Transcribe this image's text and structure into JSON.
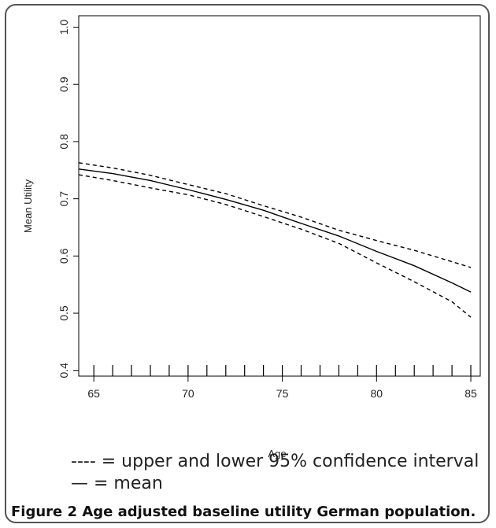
{
  "chart_data": {
    "type": "line",
    "title": "",
    "xlabel": "Age",
    "ylabel": "Mean Utility",
    "xlim": [
      64.2,
      85.5
    ],
    "ylim": [
      0.39,
      1.02
    ],
    "x_ticks": [
      "65",
      "70",
      "75",
      "80",
      "85"
    ],
    "y_ticks": [
      "0.4",
      "0.5",
      "0.6",
      "0.7",
      "0.8",
      "0.9",
      "1.0"
    ],
    "rug_x": [
      65,
      66,
      67,
      68,
      69,
      70,
      71,
      72,
      73,
      74,
      75,
      76,
      77,
      78,
      79,
      80,
      81,
      82,
      83,
      84,
      85
    ],
    "series": [
      {
        "style": "solid",
        "x": [
          64.2,
          66,
          68,
          70,
          72,
          74,
          76,
          78,
          80,
          82,
          84,
          85
        ],
        "y": [
          0.752,
          0.744,
          0.732,
          0.716,
          0.699,
          0.68,
          0.657,
          0.635,
          0.608,
          0.583,
          0.553,
          0.537
        ]
      },
      {
        "style": "dashed",
        "x": [
          64.2,
          66,
          68,
          70,
          72,
          74,
          76,
          78,
          80,
          82,
          84,
          85
        ],
        "y": [
          0.763,
          0.754,
          0.741,
          0.725,
          0.709,
          0.688,
          0.668,
          0.645,
          0.627,
          0.61,
          0.59,
          0.58
        ]
      },
      {
        "style": "dashed",
        "x": [
          64.2,
          66,
          68,
          70,
          72,
          74,
          76,
          78,
          80,
          82,
          84,
          85
        ],
        "y": [
          0.742,
          0.732,
          0.719,
          0.707,
          0.69,
          0.669,
          0.647,
          0.622,
          0.588,
          0.555,
          0.52,
          0.493
        ]
      }
    ],
    "grid": false
  },
  "legend": {
    "ci_symbol": "----",
    "ci_text": " = upper and lower 95% confidence interval",
    "mean_symbol": "—",
    "mean_text": " = mean"
  },
  "caption": {
    "label": "Figure 2",
    "text": " Age adjusted baseline utility German population."
  }
}
